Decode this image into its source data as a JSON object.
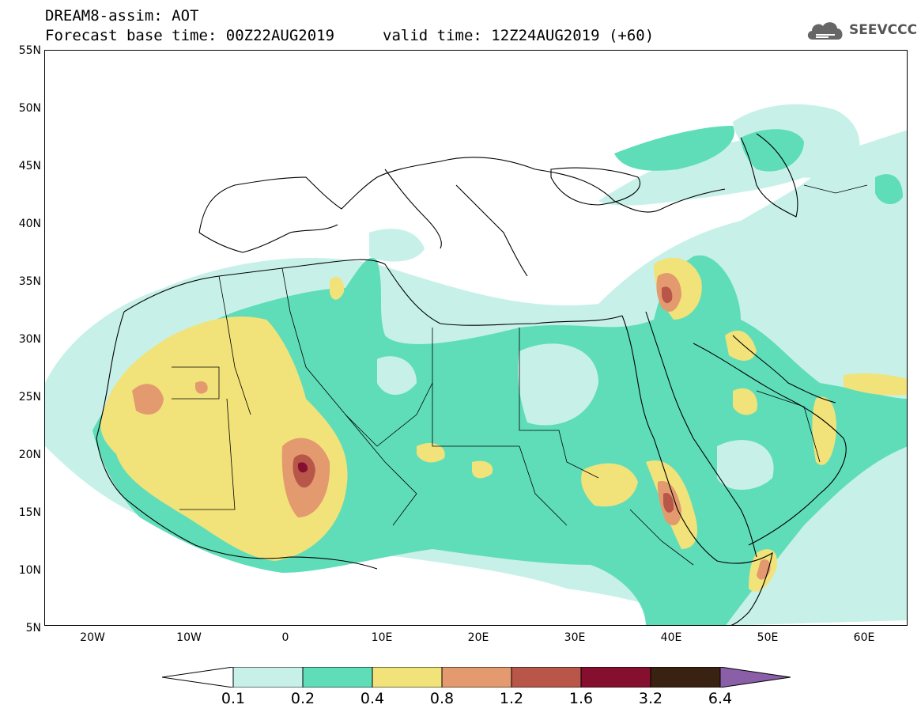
{
  "title": {
    "line1": "DREAM8-assim: AOT",
    "line2": "Forecast base time: 00Z22AUG2019",
    "valid": "valid time: 12Z24AUG2019 (+60)"
  },
  "logo": {
    "text": "SEEVCCC"
  },
  "map": {
    "lat_labels": [
      "55N",
      "50N",
      "45N",
      "40N",
      "35N",
      "30N",
      "25N",
      "20N",
      "15N",
      "10N",
      "5N"
    ],
    "lon_labels": [
      "20W",
      "10W",
      "0",
      "10E",
      "20E",
      "30E",
      "40E",
      "50E",
      "60E"
    ]
  },
  "colorbar": {
    "labels": [
      "0.1",
      "0.2",
      "0.4",
      "0.8",
      "1.2",
      "1.6",
      "3.2",
      "6.4"
    ],
    "colors": [
      "#c7f1e8",
      "#5fddb9",
      "#f2e27a",
      "#e39a6e",
      "#b8564a",
      "#850f2f",
      "#3a2212",
      "#8a5fa8"
    ]
  },
  "palette": {
    "c01": "#c7f1e8",
    "c02": "#5fddb9",
    "c04": "#f2e27a",
    "c08": "#e39a6e",
    "c12": "#b8564a",
    "c16": "#850f2f"
  }
}
